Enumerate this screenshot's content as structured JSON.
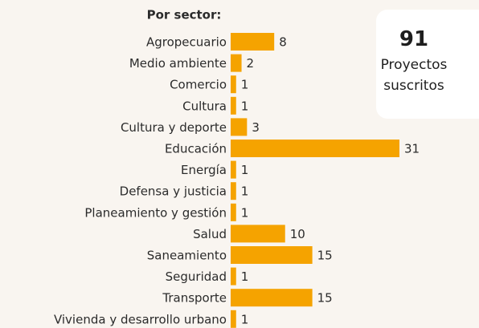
{
  "chart_data": {
    "type": "bar",
    "orientation": "horizontal",
    "title": "Por sector:",
    "categories": [
      "Agropecuario",
      "Medio ambiente",
      "Comercio",
      "Cultura",
      "Cultura y deporte",
      "Educación",
      "Energía",
      "Defensa y justicia",
      "Planeamiento y gestión",
      "Salud",
      "Saneamiento",
      "Seguridad",
      "Transporte",
      "Vivienda y desarrollo urbano"
    ],
    "values": [
      8,
      2,
      1,
      1,
      3,
      31,
      1,
      1,
      1,
      10,
      15,
      1,
      15,
      1
    ],
    "color": "#f5a300"
  },
  "summary": {
    "value": 91,
    "label": "Proyectos suscritos"
  }
}
